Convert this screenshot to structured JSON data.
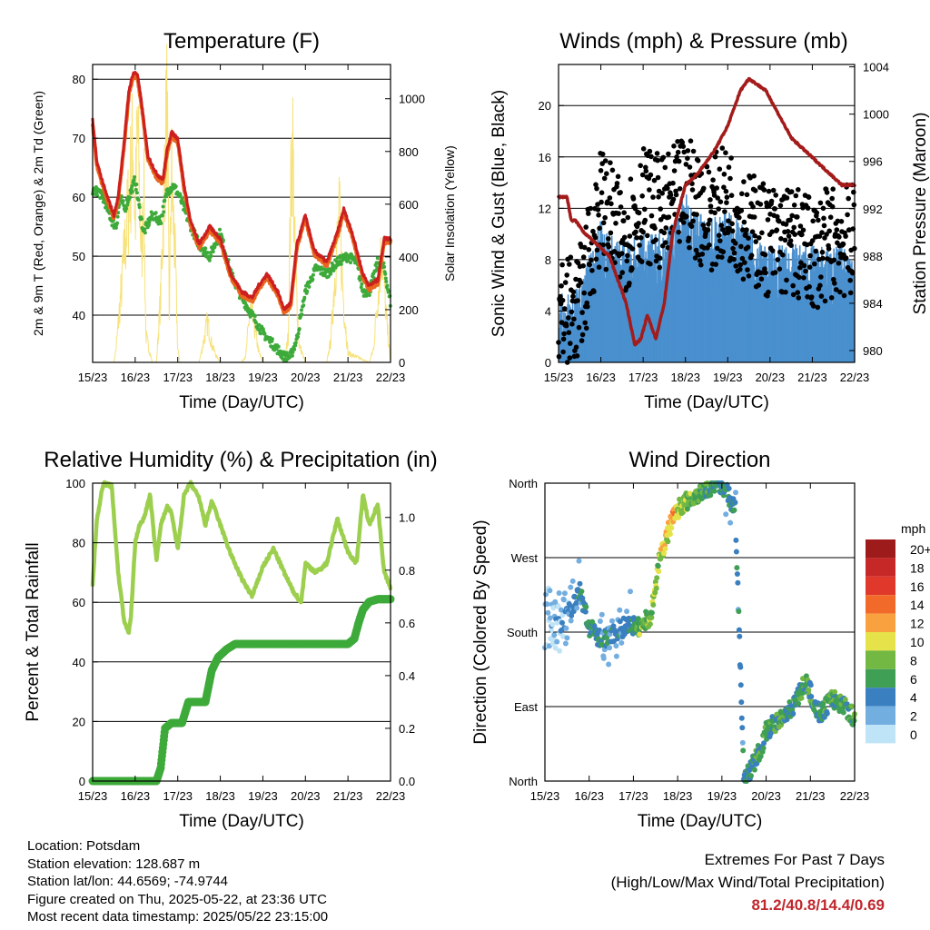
{
  "colors": {
    "temp_2m": "#e8661e",
    "temp_9m": "#cc1f1f",
    "dewpoint": "#3daa3a",
    "solar": "#f7e27a",
    "wind": "#4a90cf",
    "gust": "#000000",
    "pressure": "#a31b1b",
    "rh": "#9ccf4e",
    "precip": "#3daa3a",
    "extremes": "#c0272d"
  },
  "chart_data": [
    {
      "type": "line",
      "title": "Temperature (F)",
      "xlabel": "Time (Day/UTC)",
      "ylabel": "2m & 9m T (Red, Orange) & 2m Td (Green)",
      "y2label": "Solar Insolation (Yellow)",
      "x_ticks": [
        "15/23",
        "16/23",
        "17/23",
        "18/23",
        "19/23",
        "20/23",
        "21/23",
        "22/23"
      ],
      "ylim": [
        32,
        82.5
      ],
      "y_ticks": [
        40,
        50,
        60,
        70,
        80
      ],
      "y2lim": [
        0,
        1130
      ],
      "y2_ticks": [
        0,
        200,
        400,
        600,
        800,
        1000
      ],
      "grid": true,
      "series": [
        {
          "name": "2m & 9m T",
          "axis": "left",
          "x": [
            0,
            0.1,
            0.3,
            0.5,
            0.6,
            0.75,
            0.85,
            0.95,
            1.05,
            1.15,
            1.3,
            1.5,
            1.65,
            1.75,
            1.85,
            2.0,
            2.15,
            2.3,
            2.5,
            2.75,
            3.0,
            3.25,
            3.5,
            3.75,
            3.9,
            4.1,
            4.35,
            4.5,
            4.65,
            4.8,
            5.0,
            5.2,
            5.5,
            5.75,
            5.9,
            6.1,
            6.35,
            6.5,
            6.7,
            6.85,
            7.0
          ],
          "values": [
            73,
            66,
            61,
            57,
            60,
            70,
            78,
            81,
            81,
            76,
            67,
            64,
            63,
            68,
            71,
            70,
            62,
            56,
            52,
            55,
            53,
            47,
            44,
            43,
            45,
            47,
            44,
            41,
            42,
            52,
            57,
            51,
            49,
            54,
            58,
            54,
            47,
            45,
            46,
            53,
            53
          ]
        },
        {
          "name": "2m Td",
          "axis": "left",
          "x": [
            0,
            0.15,
            0.3,
            0.45,
            0.55,
            0.65,
            0.75,
            0.9,
            1.0,
            1.1,
            1.2,
            1.4,
            1.6,
            1.75,
            1.9,
            2.05,
            2.25,
            2.5,
            2.75,
            3.0,
            3.25,
            3.5,
            3.75,
            4.0,
            4.25,
            4.5,
            4.65,
            4.8,
            5.0,
            5.25,
            5.5,
            5.75,
            6.0,
            6.2,
            6.35,
            6.5,
            6.7,
            6.85,
            7.0
          ],
          "values": [
            61,
            61,
            59,
            56,
            55,
            60,
            58,
            61,
            63,
            58,
            54,
            57,
            56,
            61,
            62,
            60,
            56,
            52,
            50,
            54,
            47,
            43,
            40,
            37,
            35,
            33,
            33,
            36,
            44,
            48,
            47,
            49,
            50,
            49,
            44,
            44,
            49,
            48,
            42
          ]
        },
        {
          "name": "Solar Insolation",
          "axis": "right",
          "x": [
            0,
            0.5,
            0.55,
            0.7,
            0.85,
            0.95,
            1.0,
            1.05,
            1.15,
            1.2,
            1.25,
            1.4,
            1.5,
            1.6,
            1.7,
            1.75,
            1.8,
            1.85,
            1.95,
            2.0,
            2.05,
            2.15,
            2.2,
            2.5,
            2.55,
            2.7,
            2.8,
            2.9,
            3.0,
            3.5,
            3.6,
            3.7,
            3.8,
            3.9,
            4.0,
            4.5,
            4.6,
            4.65,
            4.7,
            4.75,
            4.85,
            5.0,
            5.5,
            5.6,
            5.7,
            5.8,
            5.9,
            6.0,
            6.5,
            6.6,
            6.7,
            6.8,
            6.9,
            7.0
          ],
          "values": [
            0,
            0,
            60,
            380,
            720,
            980,
            600,
            1060,
            450,
            820,
            120,
            0,
            0,
            300,
            920,
            1140,
            200,
            850,
            400,
            60,
            0,
            0,
            0,
            0,
            40,
            180,
            80,
            30,
            0,
            0,
            30,
            240,
            160,
            50,
            0,
            0,
            120,
            720,
            1010,
            500,
            80,
            0,
            0,
            100,
            420,
            640,
            260,
            40,
            0,
            60,
            300,
            520,
            200,
            0
          ]
        }
      ]
    },
    {
      "type": "scatter",
      "title": "Winds (mph) & Pressure (mb)",
      "xlabel": "Time (Day/UTC)",
      "ylabel": "Sonic Wind & Gust (Blue, Black)",
      "y2label": "Station Pressure (Maroon)",
      "x_ticks": [
        "15/23",
        "16/23",
        "17/23",
        "18/23",
        "19/23",
        "20/23",
        "21/23",
        "22/23"
      ],
      "ylim": [
        0,
        23.2
      ],
      "y_ticks": [
        0,
        4,
        8,
        12,
        16,
        20
      ],
      "y2lim": [
        979,
        1004.2
      ],
      "y2_ticks": [
        980,
        984,
        988,
        992,
        996,
        1000,
        1004
      ],
      "grid": true,
      "series": [
        {
          "name": "Sonic Wind",
          "x": [
            0,
            0.5,
            1.0,
            1.5,
            2.0,
            2.5,
            3.0,
            3.5,
            4.0,
            4.5,
            5.0,
            5.5,
            6.0,
            6.5,
            7.0
          ],
          "values": [
            1,
            2,
            7,
            5,
            6,
            6,
            9,
            7,
            8,
            6,
            5,
            5,
            5,
            5,
            5
          ]
        },
        {
          "name": "Gust",
          "x": [
            0,
            0.5,
            1.0,
            1.5,
            2.0,
            2.5,
            3.0,
            3.5,
            4.0,
            4.5,
            5.0,
            5.5,
            6.0,
            6.5,
            7.0
          ],
          "values": [
            3,
            4,
            12,
            9,
            12,
            11,
            13,
            11,
            12,
            10,
            9,
            9,
            8,
            9,
            9
          ]
        },
        {
          "name": "Station Pressure",
          "x": [
            0,
            0.2,
            0.3,
            0.4,
            0.6,
            0.9,
            1.2,
            1.4,
            1.6,
            1.8,
            1.95,
            2.1,
            2.3,
            2.5,
            2.7,
            3.0,
            3.3,
            3.7,
            4.0,
            4.3,
            4.5,
            4.7,
            4.9,
            5.2,
            5.5,
            5.8,
            6.1,
            6.4,
            6.7,
            7.0
          ],
          "values": [
            993,
            993,
            991,
            991,
            990,
            989,
            988,
            986,
            984,
            980.5,
            981,
            983,
            981,
            984,
            990,
            994,
            995,
            997,
            999,
            1002,
            1003,
            1002.5,
            1002,
            1000,
            998,
            997,
            996,
            995,
            994,
            994
          ]
        }
      ]
    },
    {
      "type": "line",
      "title": "Relative Humidity (%) & Precipitation (in)",
      "xlabel": "Time (Day/UTC)",
      "ylabel": "Percent & Total Rainfall",
      "x_ticks": [
        "15/23",
        "16/23",
        "17/23",
        "18/23",
        "19/23",
        "20/23",
        "21/23",
        "22/23"
      ],
      "ylim": [
        0,
        100
      ],
      "y_ticks": [
        0,
        20,
        40,
        60,
        80,
        100
      ],
      "y2lim": [
        0,
        1.13
      ],
      "y2_ticks": [
        "0.0",
        "0.2",
        "0.4",
        "0.6",
        "0.8",
        "1.0"
      ],
      "grid": true,
      "series": [
        {
          "name": "Relative Humidity",
          "axis": "left",
          "x": [
            0,
            0.1,
            0.25,
            0.45,
            0.6,
            0.75,
            0.85,
            0.9,
            1.0,
            1.1,
            1.2,
            1.35,
            1.5,
            1.6,
            1.75,
            1.85,
            2.0,
            2.15,
            2.3,
            2.5,
            2.65,
            2.8,
            3.0,
            3.25,
            3.5,
            3.75,
            4.0,
            4.25,
            4.5,
            4.7,
            4.9,
            5.0,
            5.25,
            5.5,
            5.75,
            6.0,
            6.2,
            6.35,
            6.5,
            6.7,
            6.85,
            7.0
          ],
          "values": [
            66,
            88,
            100,
            99,
            70,
            53,
            50,
            55,
            80,
            86,
            88,
            96,
            74,
            86,
            92,
            90,
            78,
            96,
            100,
            95,
            86,
            94,
            86,
            76,
            68,
            62,
            72,
            78,
            70,
            64,
            60,
            73,
            70,
            73,
            88,
            77,
            73,
            96,
            86,
            93,
            70,
            65
          ]
        },
        {
          "name": "Total Rainfall",
          "axis": "right",
          "x": [
            0,
            1.5,
            1.6,
            1.7,
            1.85,
            2.1,
            2.25,
            2.45,
            2.65,
            2.8,
            2.95,
            3.15,
            3.35,
            4.0,
            5.0,
            6.0,
            6.15,
            6.25,
            6.35,
            6.5,
            6.7,
            7.0
          ],
          "values": [
            0,
            0,
            0.05,
            0.2,
            0.22,
            0.22,
            0.3,
            0.3,
            0.3,
            0.42,
            0.47,
            0.5,
            0.52,
            0.52,
            0.52,
            0.52,
            0.54,
            0.6,
            0.65,
            0.68,
            0.69,
            0.69
          ]
        }
      ]
    },
    {
      "type": "scatter",
      "title": "Wind Direction",
      "xlabel": "Time (Day/UTC)",
      "ylabel": "Direction (Colored By Speed)",
      "x_ticks": [
        "15/23",
        "16/23",
        "17/23",
        "18/23",
        "19/23",
        "20/23",
        "21/23",
        "22/23"
      ],
      "ylim": [
        0,
        360
      ],
      "y_ticks": [
        "North",
        "East",
        "South",
        "West",
        "North"
      ],
      "grid": true,
      "legend": {
        "title": "mph",
        "labels": [
          "20+",
          "18",
          "16",
          "14",
          "12",
          "10",
          "8",
          "6",
          "4",
          "2",
          "0"
        ],
        "colors": [
          "#9e1b1b",
          "#c62828",
          "#e0392b",
          "#f26a2a",
          "#f9a03f",
          "#e6e24a",
          "#73b843",
          "#3f9f55",
          "#3a7fbf",
          "#73aee0",
          "#bfe3f7"
        ]
      },
      "series": [
        {
          "name": "Direction",
          "x": [
            0,
            0.4,
            0.8,
            1.0,
            1.3,
            1.6,
            1.9,
            2.1,
            2.4,
            2.6,
            2.9,
            3.1,
            3.4,
            3.7,
            4.0,
            4.3,
            4.5,
            4.7,
            4.9,
            5.0,
            5.3,
            5.6,
            5.9,
            6.2,
            6.5,
            6.8,
            7.0
          ],
          "values": [
            200,
            190,
            230,
            185,
            170,
            180,
            190,
            185,
            200,
            270,
            320,
            335,
            345,
            355,
            360,
            330,
            0,
            20,
            40,
            60,
            75,
            90,
            120,
            80,
            100,
            90,
            75
          ],
          "speeds": [
            1,
            2,
            4,
            6,
            4,
            3,
            4,
            7,
            8,
            9,
            12,
            8,
            7,
            6,
            5,
            4,
            4,
            5,
            6,
            6,
            6,
            5,
            6,
            5,
            6,
            6,
            6
          ]
        }
      ]
    }
  ],
  "info": {
    "location": "Location: Potsdam",
    "elevation": "Station elevation: 128.687 m",
    "latlon": "Station lat/lon: 44.6569; -74.9744",
    "created": "Figure created on Thu, 2025-05-22, at 23:36 UTC",
    "recent": "Most recent data timestamp: 2025/05/22 23:15:00"
  },
  "extremes": {
    "title": "Extremes For Past 7 Days",
    "subtitle": "(High/Low/Max Wind/Total Precipitation)",
    "values": "81.2/40.8/14.4/0.69"
  }
}
